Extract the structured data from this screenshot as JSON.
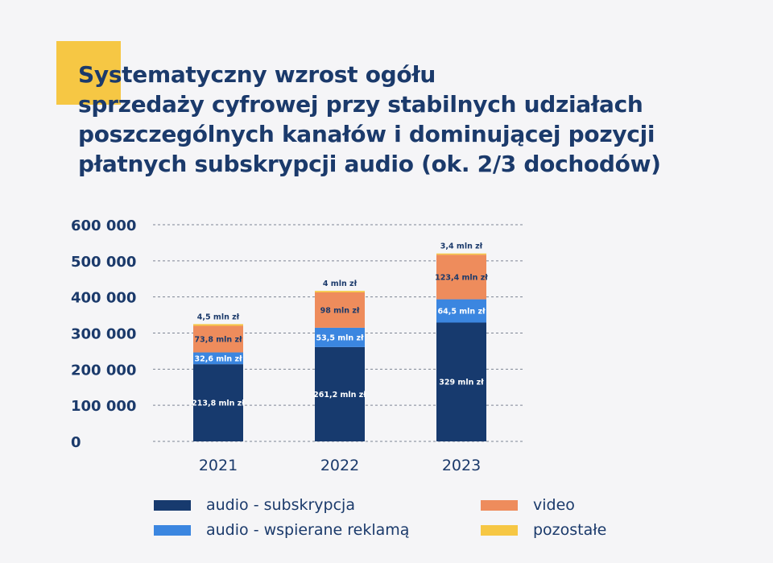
{
  "title_lines": [
    "Systematyczny wzrost ogółu",
    "sprzedaży cyfrowej przy stabilnych udziałach",
    "poszczególnych kanałów i dominującej pozycji",
    "płatnych subskrypcji audio (ok. 2/3 dochodów)"
  ],
  "colors": {
    "audio_subskrypcja": "#173a6e",
    "audio_reklama": "#3b86e0",
    "video": "#ee8c5c",
    "pozostale": "#f6c744",
    "accent": "#f6c744",
    "text": "#1b3a6b",
    "grid": "#7d8594"
  },
  "chart_data": {
    "type": "bar",
    "stacked": true,
    "categories": [
      "2021",
      "2022",
      "2023"
    ],
    "y_tick_labels": [
      "0",
      "100 000",
      "200 000",
      "300 000",
      "400 000",
      "500 000",
      "600 000"
    ],
    "y_ticks": [
      0,
      100000,
      200000,
      300000,
      400000,
      500000,
      600000
    ],
    "ylim": [
      0,
      600000
    ],
    "grid": true,
    "legend_position": "bottom",
    "series": [
      {
        "name": "audio - subskrypcja",
        "color_key": "audio_subskrypcja",
        "values": [
          213800,
          261200,
          329000
        ],
        "labels": [
          "213,8 mln zł",
          "261,2 mln zł",
          "329 mln zł"
        ]
      },
      {
        "name": "audio - wspierane reklamą",
        "color_key": "audio_reklama",
        "values": [
          32600,
          53500,
          64500
        ],
        "labels": [
          "32,6 mln zł",
          "53,5 mln zł",
          "64,5 mln zł"
        ]
      },
      {
        "name": "video",
        "color_key": "video",
        "values": [
          73800,
          98000,
          123400
        ],
        "labels": [
          "73,8 mln zł",
          "98 mln zł",
          "123,4 mln zł"
        ]
      },
      {
        "name": "pozostałe",
        "color_key": "pozostale",
        "values": [
          4500,
          4000,
          3400
        ],
        "labels": [
          "4,5 mln zł",
          "4 mln zł",
          "3,4 mln zł"
        ]
      }
    ]
  }
}
